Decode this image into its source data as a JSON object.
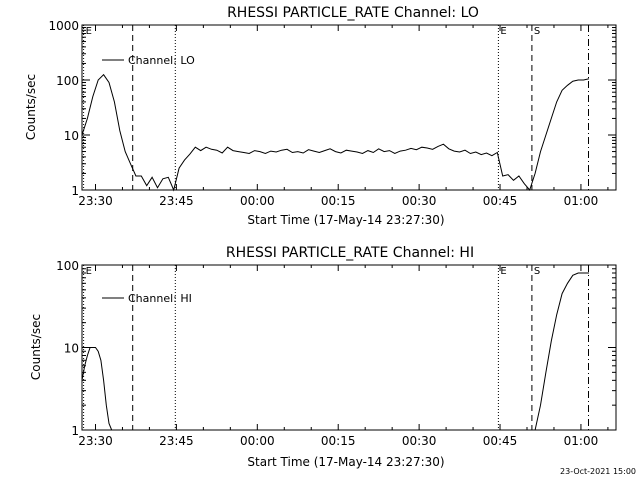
{
  "chart_data": [
    {
      "type": "line",
      "title": "RHESSI PARTICLE_RATE Channel: LO",
      "xlabel": "Start Time (17-May-14 23:27:30)",
      "ylabel": "Counts/sec",
      "yscale": "log",
      "ylim": [
        1,
        1000
      ],
      "xlim_minutes": [
        0,
        99
      ],
      "grid": false,
      "legend_placement": "top-left",
      "x_ticks": [
        {
          "label": "23:30",
          "minutes": 2.5
        },
        {
          "label": "23:45",
          "minutes": 17.5
        },
        {
          "label": "00:00",
          "minutes": 32.5
        },
        {
          "label": "00:15",
          "minutes": 47.5
        },
        {
          "label": "00:30",
          "minutes": 62.5
        },
        {
          "label": "00:45",
          "minutes": 77.5
        },
        {
          "label": "01:00",
          "minutes": 92.5
        }
      ],
      "y_ticks": [
        {
          "label": "1",
          "value": 1
        },
        {
          "label": "10",
          "value": 10
        },
        {
          "label": "100",
          "value": 100
        },
        {
          "label": "1000",
          "value": 1000
        }
      ],
      "markers": [
        {
          "label": "E",
          "minutes": 0.3,
          "style": "dotted"
        },
        {
          "label": "",
          "minutes": 9.4,
          "style": "dashed"
        },
        {
          "label": "",
          "minutes": 17.3,
          "style": "dotted"
        },
        {
          "label": "E",
          "minutes": 77.2,
          "style": "dotted"
        },
        {
          "label": "S",
          "minutes": 83.4,
          "style": "dashed"
        },
        {
          "label": "",
          "minutes": 93.9,
          "style": "dashdot"
        }
      ],
      "series": [
        {
          "name": "Channel: LO",
          "x": [
            0,
            1,
            2,
            3,
            4,
            5,
            6,
            7,
            8,
            9,
            10,
            11,
            12,
            13,
            14,
            15,
            16,
            17,
            18,
            19,
            20,
            21,
            22,
            23,
            24,
            25,
            26,
            27,
            28,
            29,
            30,
            31,
            32,
            33,
            34,
            35,
            36,
            37,
            38,
            39,
            40,
            41,
            42,
            43,
            44,
            45,
            46,
            47,
            48,
            49,
            50,
            51,
            52,
            53,
            54,
            55,
            56,
            57,
            58,
            59,
            60,
            61,
            62,
            63,
            64,
            65,
            66,
            67,
            68,
            69,
            70,
            71,
            72,
            73,
            74,
            75,
            76,
            77,
            78,
            79,
            80,
            81,
            82,
            83,
            84,
            85,
            86,
            87,
            88,
            89,
            90,
            91,
            92,
            93,
            94
          ],
          "y": [
            10,
            20,
            50,
            100,
            125,
            90,
            40,
            12,
            5,
            3,
            1.8,
            1.8,
            1.2,
            1.7,
            1.1,
            1.6,
            1.7,
            1,
            2.5,
            3.5,
            4.5,
            6,
            5.2,
            6,
            5.5,
            5.3,
            4.7,
            6,
            5.2,
            5,
            4.8,
            4.6,
            5.2,
            5,
            4.6,
            5.1,
            4.9,
            5.3,
            5.5,
            4.8,
            5,
            4.7,
            5.4,
            5.1,
            4.8,
            5.2,
            5.6,
            5,
            4.7,
            5.3,
            5.1,
            4.9,
            4.6,
            5.2,
            4.8,
            5.6,
            5,
            5.2,
            4.6,
            5.1,
            5.3,
            5.7,
            5.4,
            6,
            5.8,
            5.5,
            6.2,
            6.8,
            5.6,
            5.1,
            4.9,
            5.3,
            4.6,
            4.9,
            4.4,
            4.7,
            4.2,
            4.8,
            1.8,
            1.9,
            1.5,
            1.8,
            1.3,
            1,
            2,
            5,
            10,
            20,
            40,
            65,
            80,
            95,
            100,
            100,
            105
          ]
        }
      ]
    },
    {
      "type": "line",
      "title": "RHESSI PARTICLE_RATE Channel: HI",
      "xlabel": "Start Time (17-May-14 23:27:30)",
      "ylabel": "Counts/sec",
      "yscale": "log",
      "ylim": [
        1,
        100
      ],
      "xlim_minutes": [
        0,
        99
      ],
      "grid": false,
      "legend_placement": "top-left",
      "x_ticks": [
        {
          "label": "23:30",
          "minutes": 2.5
        },
        {
          "label": "23:45",
          "minutes": 17.5
        },
        {
          "label": "00:00",
          "minutes": 32.5
        },
        {
          "label": "00:15",
          "minutes": 47.5
        },
        {
          "label": "00:30",
          "minutes": 62.5
        },
        {
          "label": "00:45",
          "minutes": 77.5
        },
        {
          "label": "01:00",
          "minutes": 92.5
        }
      ],
      "y_ticks": [
        {
          "label": "1",
          "value": 1
        },
        {
          "label": "10",
          "value": 10
        },
        {
          "label": "100",
          "value": 100
        }
      ],
      "markers": [
        {
          "label": "E",
          "minutes": 0.3,
          "style": "dotted"
        },
        {
          "label": "",
          "minutes": 9.4,
          "style": "dashed"
        },
        {
          "label": "",
          "minutes": 17.3,
          "style": "dotted"
        },
        {
          "label": "E",
          "minutes": 77.2,
          "style": "dotted"
        },
        {
          "label": "S",
          "minutes": 83.4,
          "style": "dashed"
        },
        {
          "label": "",
          "minutes": 93.9,
          "style": "dashdot"
        }
      ],
      "series": [
        {
          "name": "Channel: HI",
          "x": [
            0,
            0.5,
            1,
            1.5,
            2,
            2.5,
            3,
            3.5,
            4,
            4.5,
            5,
            5.5,
            84,
            85,
            86,
            87,
            88,
            89,
            90,
            91,
            92,
            93,
            94
          ],
          "y": [
            4,
            6,
            8,
            10,
            10,
            10,
            9,
            7,
            4,
            2,
            1.2,
            1,
            1,
            2,
            5,
            12,
            25,
            45,
            60,
            75,
            80,
            80,
            80
          ]
        }
      ]
    }
  ],
  "footer_timestamp": "23-Oct-2021 15:00"
}
